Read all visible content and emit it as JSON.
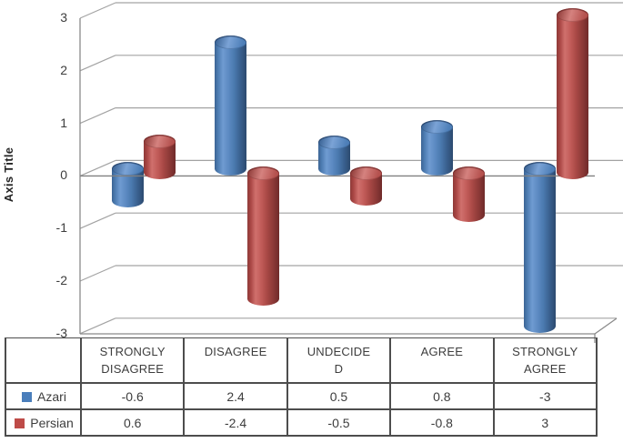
{
  "chart_data": {
    "type": "bar",
    "style": "3d-cylinder-clustered",
    "title": "",
    "ylabel": "Axis Title",
    "xlabel": "",
    "ylim": [
      -3,
      3
    ],
    "yticks": [
      "3",
      "2",
      "1",
      "0",
      "-1",
      "-2",
      "-3"
    ],
    "grid": true,
    "legend_position": "data-table-left",
    "data_table_shown": true,
    "categories": [
      "STRONGLY\nDISAGREE",
      "DISAGREE",
      "UNDECIDE\nD",
      "AGREE",
      "STRONGLY\nAGREE"
    ],
    "series": [
      {
        "name": "Azari",
        "color": "#4A7EBB",
        "values": [
          -0.6,
          2.4,
          0.5,
          0.8,
          -3
        ],
        "display": [
          "-0.6",
          "2.4",
          "0.5",
          "0.8",
          "-3"
        ]
      },
      {
        "name": "Persian",
        "color": "#BE4B48",
        "values": [
          0.6,
          -2.4,
          -0.5,
          -0.8,
          3
        ],
        "display": [
          "0.6",
          "-2.4",
          "-0.5",
          "-0.8",
          "3"
        ]
      }
    ],
    "colors": {
      "gridline": "#a3a3a3",
      "axis_line": "#8a8a8a",
      "table_border": "#4d4d4d",
      "text": "#3d3d3d"
    }
  }
}
